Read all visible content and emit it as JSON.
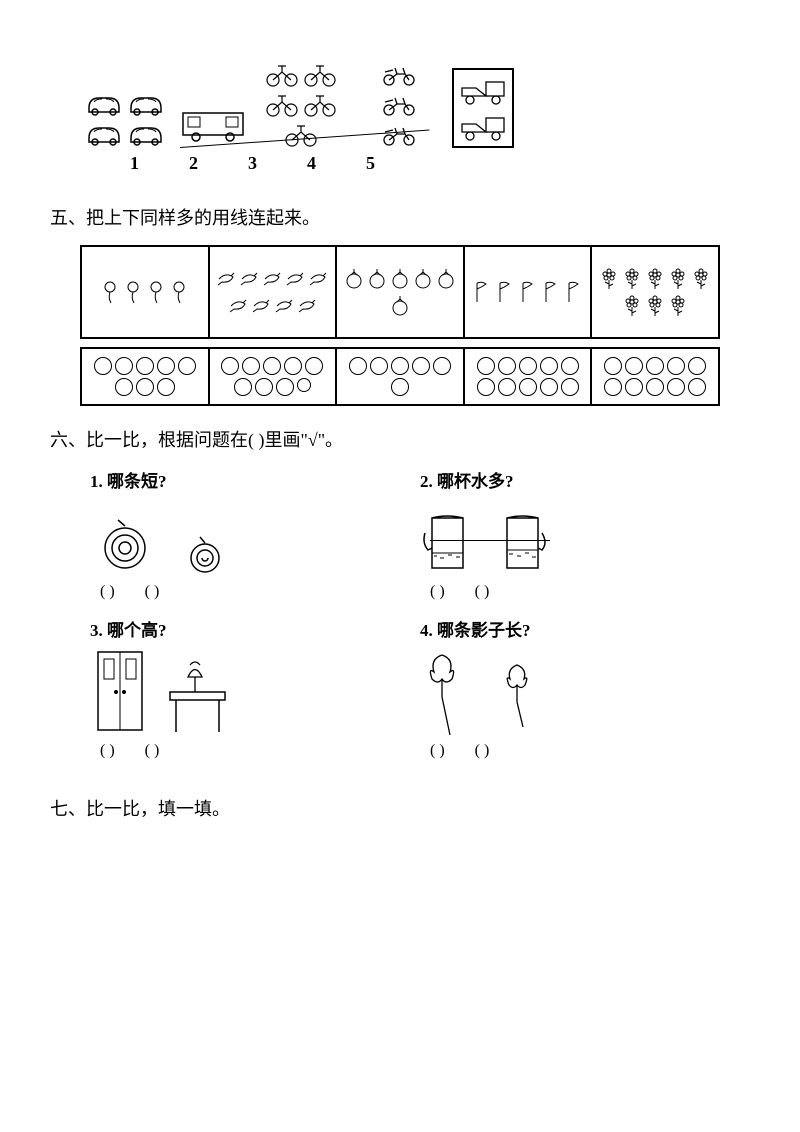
{
  "colors": {
    "ink": "#000000",
    "bg": "#ffffff"
  },
  "vehicles": {
    "numbers": [
      "1",
      "2",
      "3",
      "4",
      "5"
    ],
    "cars": 4,
    "bus": 1,
    "bikes": 5,
    "motos": 3,
    "trucks": 2
  },
  "section5_title": "五、把上下同样多的用线连起来。",
  "top_row": {
    "balloons": 4,
    "fish": 9,
    "tomatoes": 6,
    "flags": 5,
    "flowers": 8
  },
  "bottom_row": {
    "cells": [
      8,
      9,
      6,
      10,
      10
    ]
  },
  "section6_title": "六、比一比，根据问题在(    )里画\"√\"。",
  "q1": {
    "num": "1.",
    "text": "哪条短?",
    "a": "(    )",
    "b": "(    )"
  },
  "q2": {
    "num": "2.",
    "text": "哪杯水多?",
    "a": "(    )",
    "b": "(    )"
  },
  "q3": {
    "num": "3.",
    "text": "哪个高?",
    "a": "(    )",
    "b": "(    )"
  },
  "q4": {
    "num": "4.",
    "text": "哪条影子长?",
    "a": "(    )",
    "b": "(    )"
  },
  "section7_title": "七、比一比，填一填。"
}
